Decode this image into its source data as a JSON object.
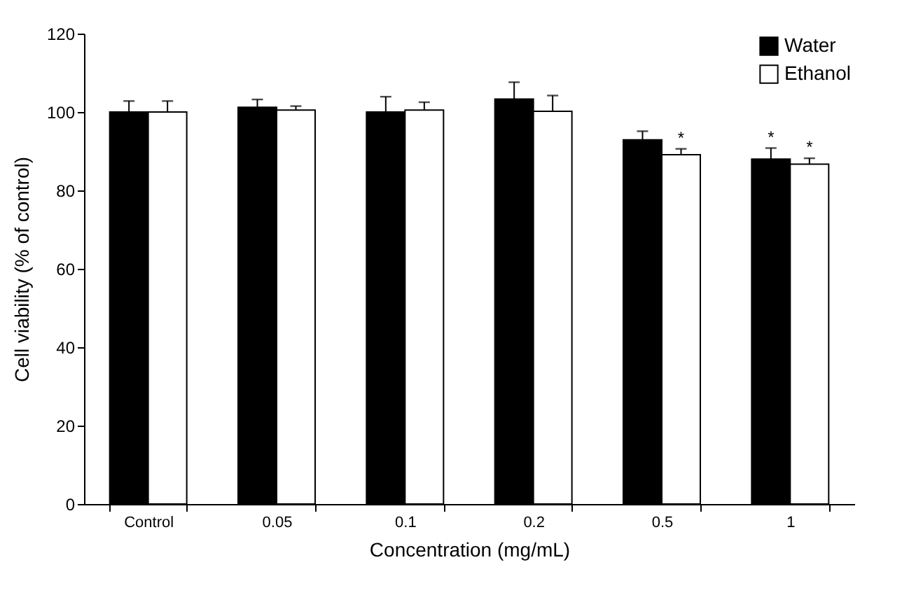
{
  "chart_data": {
    "type": "bar",
    "xlabel": "Concentration (mg/mL)",
    "ylabel": "Cell viability (% of control)",
    "categories": [
      "Control",
      "0.05",
      "0.1",
      "0.2",
      "0.5",
      "1"
    ],
    "series": [
      {
        "name": "Water",
        "color": "#000000",
        "values": [
          100,
          101.2,
          100,
          103.3,
          92.9,
          88
        ],
        "errors": [
          2.8,
          2,
          3.9,
          4.3,
          2.2,
          2.8
        ]
      },
      {
        "name": "Ethanol",
        "color": "#ffffff",
        "values": [
          100,
          100.5,
          100.5,
          100.2,
          89.1,
          86.7
        ],
        "errors": [
          2.8,
          1,
          2,
          4,
          1.5,
          1.5
        ]
      }
    ],
    "annotations": [
      {
        "text": "*",
        "x": "0.5",
        "y": 89.1
      },
      {
        "text": "*",
        "x": "1",
        "y": 88
      },
      {
        "text": "*",
        "x": "1",
        "y": 86.7
      }
    ],
    "ylim": [
      0,
      120
    ],
    "yticks": [
      0,
      20,
      40,
      60,
      80,
      100,
      120
    ],
    "grid": false,
    "legend": "top right"
  }
}
